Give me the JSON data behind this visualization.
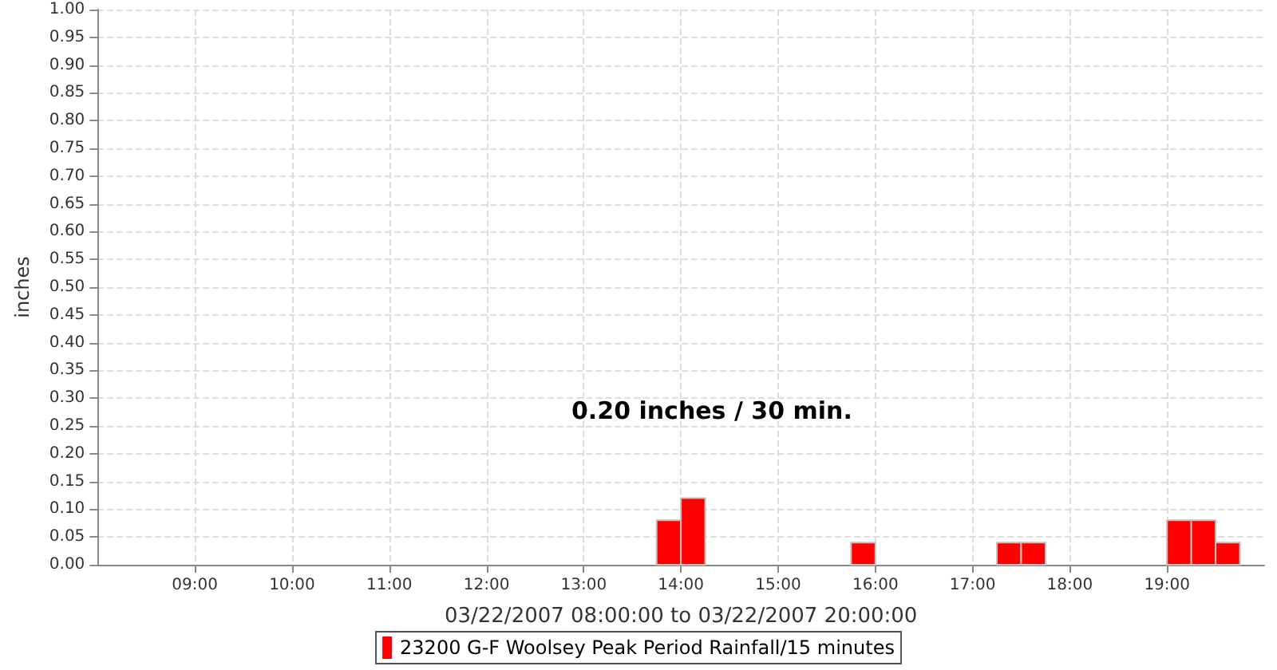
{
  "chart_data": {
    "type": "bar",
    "xlabel": "03/22/2007 08:00:00 to 03/22/2007 20:00:00",
    "ylabel": "inches",
    "annotations": [
      "0.20 inches / 30 min."
    ],
    "x": [
      13.875,
      14.125,
      15.875,
      17.375,
      17.625,
      19.125,
      19.375,
      19.625
    ],
    "series": [
      {
        "name": "23200 G-F Woolsey Peak Period Rainfall/15 minutes",
        "color": "#ff0000",
        "values": [
          0.08,
          0.12,
          0.04,
          0.04,
          0.04,
          0.08,
          0.08,
          0.04
        ]
      }
    ],
    "xlim": [
      8,
      20
    ],
    "xticks": [
      {
        "value": 9,
        "label": "09:00"
      },
      {
        "value": 10,
        "label": "10:00"
      },
      {
        "value": 11,
        "label": "11:00"
      },
      {
        "value": 12,
        "label": "12:00"
      },
      {
        "value": 13,
        "label": "13:00"
      },
      {
        "value": 14,
        "label": "14:00"
      },
      {
        "value": 15,
        "label": "15:00"
      },
      {
        "value": 16,
        "label": "16:00"
      },
      {
        "value": 17,
        "label": "17:00"
      },
      {
        "value": 18,
        "label": "18:00"
      },
      {
        "value": 19,
        "label": "19:00"
      }
    ],
    "ylim": [
      0,
      1
    ],
    "yticks": [
      {
        "value": 0,
        "label": "0.00"
      },
      {
        "value": 0.05,
        "label": "0.05"
      },
      {
        "value": 0.1,
        "label": "0.10"
      },
      {
        "value": 0.15,
        "label": "0.15"
      },
      {
        "value": 0.2,
        "label": "0.20"
      },
      {
        "value": 0.25,
        "label": "0.25"
      },
      {
        "value": 0.3,
        "label": "0.30"
      },
      {
        "value": 0.35,
        "label": "0.35"
      },
      {
        "value": 0.4,
        "label": "0.40"
      },
      {
        "value": 0.45,
        "label": "0.45"
      },
      {
        "value": 0.5,
        "label": "0.50"
      },
      {
        "value": 0.55,
        "label": "0.55"
      },
      {
        "value": 0.6,
        "label": "0.60"
      },
      {
        "value": 0.65,
        "label": "0.65"
      },
      {
        "value": 0.7,
        "label": "0.70"
      },
      {
        "value": 0.75,
        "label": "0.75"
      },
      {
        "value": 0.8,
        "label": "0.80"
      },
      {
        "value": 0.85,
        "label": "0.85"
      },
      {
        "value": 0.9,
        "label": "0.90"
      },
      {
        "value": 0.95,
        "label": "0.95"
      },
      {
        "value": 1,
        "label": "1.00"
      }
    ],
    "grid": true,
    "legend": "bottom"
  }
}
